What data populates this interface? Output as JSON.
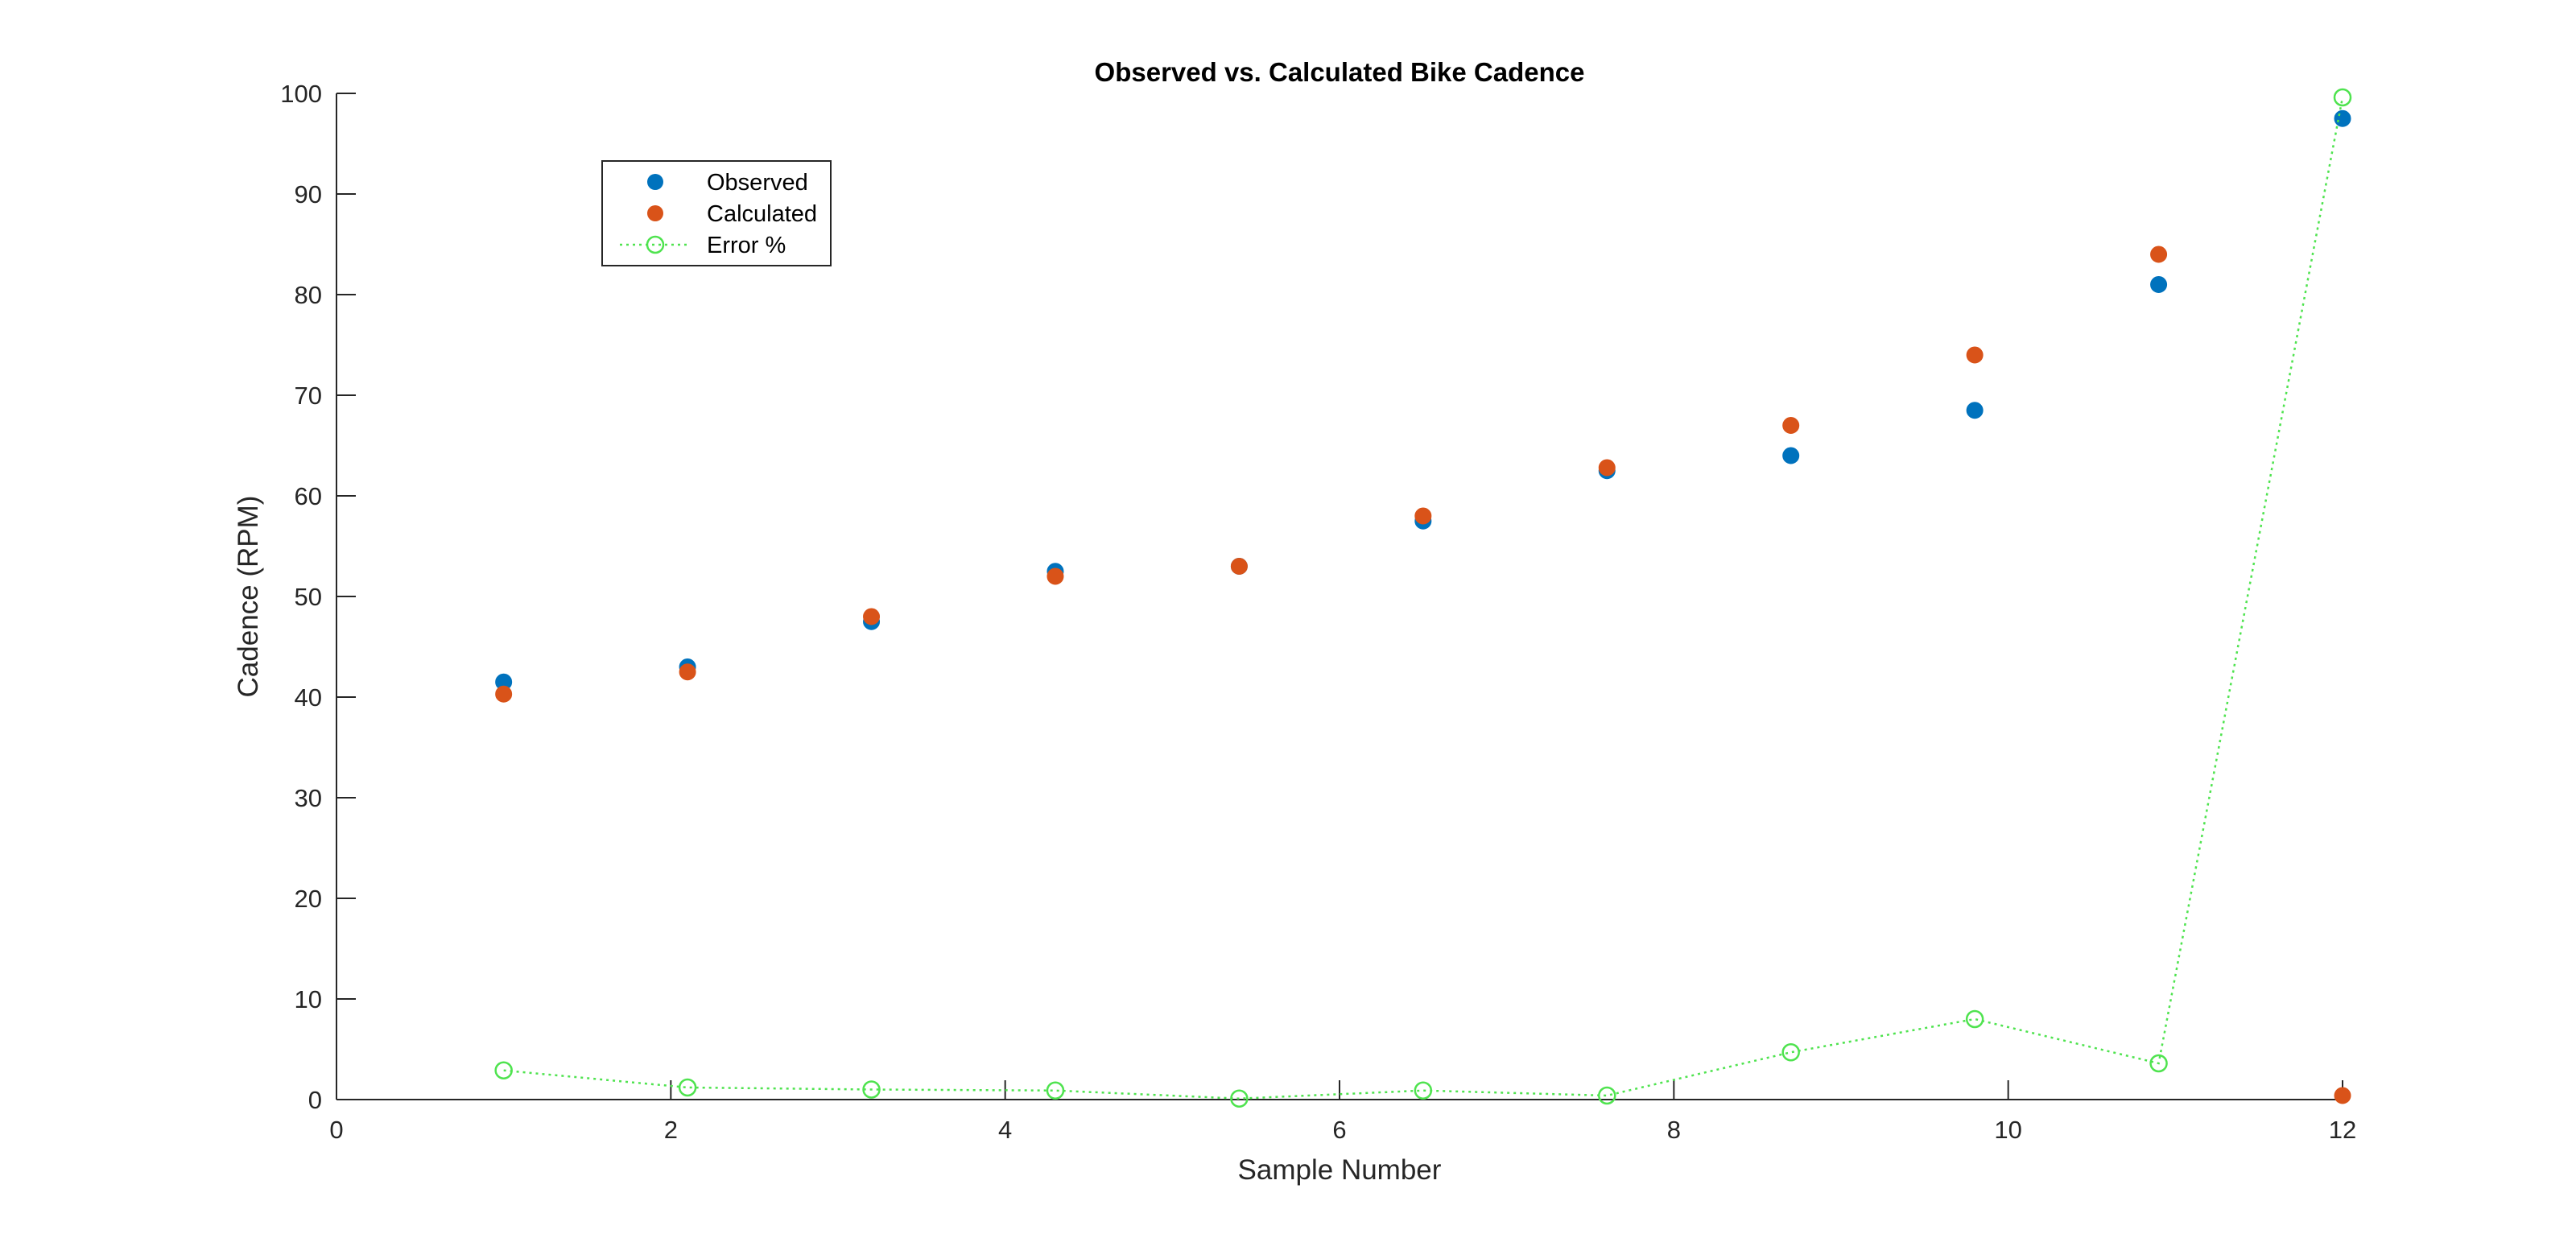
{
  "chart_data": {
    "type": "scatter",
    "title": "Observed vs. Calculated Bike Cadence",
    "xlabel": "Sample Number",
    "ylabel": "Cadence (RPM)",
    "xlim": [
      0,
      12
    ],
    "ylim": [
      0,
      100
    ],
    "xticks": [
      "0",
      "2",
      "4",
      "6",
      "8",
      "10",
      "12"
    ],
    "yticks": [
      "0",
      "10",
      "20",
      "30",
      "40",
      "50",
      "60",
      "70",
      "80",
      "90",
      "100"
    ],
    "grid": false,
    "legend_position": "top-left",
    "series": [
      {
        "name": "Observed",
        "style": "filled-dot",
        "color": "#0072BD",
        "x": [
          1,
          2.1,
          3.2,
          4.3,
          5.4,
          6.5,
          7.6,
          8.7,
          9.8,
          10.9,
          12
        ],
        "y": [
          41.5,
          43,
          47.5,
          52.5,
          53,
          57.5,
          62.5,
          64,
          68.5,
          81,
          97.5
        ]
      },
      {
        "name": "Calculated",
        "style": "filled-dot",
        "color": "#D95319",
        "x": [
          1,
          2.1,
          3.2,
          4.3,
          5.4,
          6.5,
          7.6,
          8.7,
          9.8,
          10.9,
          12
        ],
        "y": [
          40.3,
          42.5,
          48,
          52,
          53,
          58,
          62.8,
          67,
          74,
          84,
          0.4
        ]
      },
      {
        "name": "Error %",
        "style": "dotted-line-open-circle",
        "color": "#4FE34F",
        "x": [
          1,
          2.1,
          3.2,
          4.3,
          5.4,
          6.5,
          7.6,
          8.7,
          9.8,
          10.9,
          12
        ],
        "y": [
          2.9,
          1.2,
          1.0,
          0.9,
          0.1,
          0.9,
          0.4,
          4.7,
          8.0,
          3.6,
          99.6
        ]
      }
    ]
  }
}
